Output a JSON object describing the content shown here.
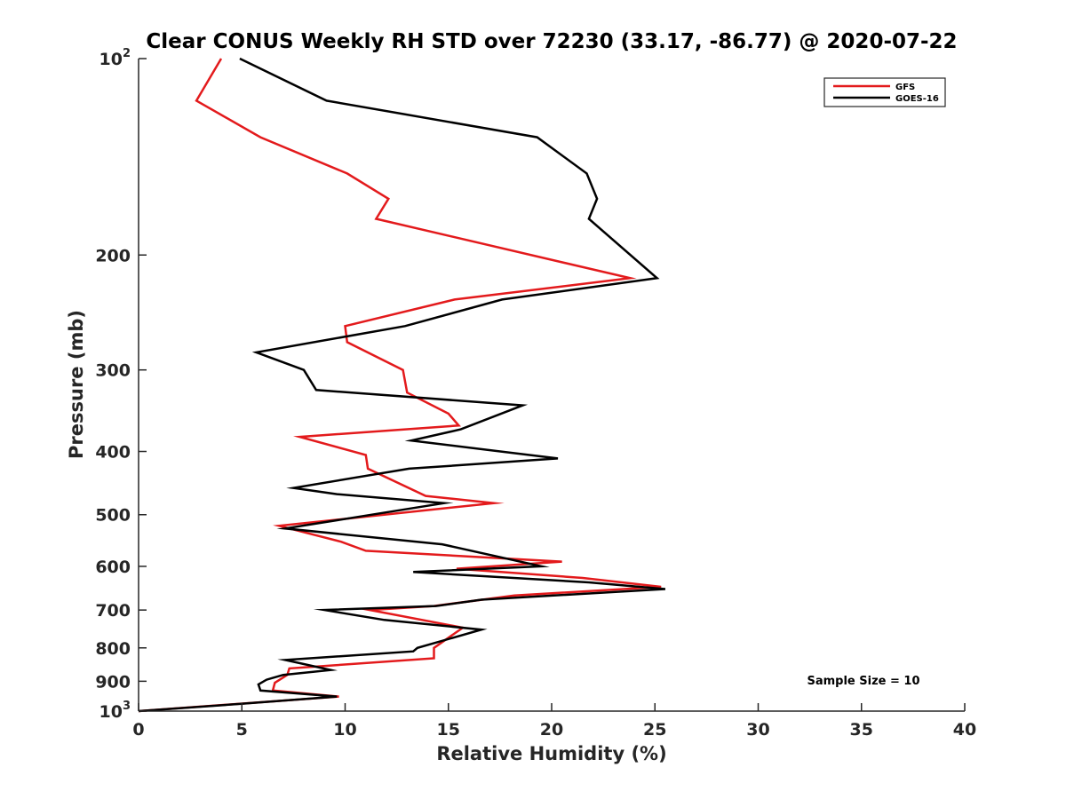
{
  "chart_data": {
    "type": "line",
    "title": "Clear CONUS Weekly RH STD over 72230 (33.17, -86.77) @ 2020-07-22",
    "xlabel": "Relative Humidity (%)",
    "ylabel": "Pressure (mb)",
    "xlim": [
      0,
      40
    ],
    "ylim": [
      100,
      1000
    ],
    "yscale": "log",
    "y_reversed": true,
    "xticks": [
      0,
      5,
      10,
      15,
      20,
      25,
      30,
      35,
      40
    ],
    "xtick_labels": [
      "0",
      "5",
      "10",
      "15",
      "20",
      "25",
      "30",
      "35",
      "40"
    ],
    "yticks": [
      100,
      200,
      300,
      400,
      500,
      600,
      700,
      800,
      900,
      1000
    ],
    "ytick_labels": [
      {
        "base": "10",
        "exp": "2"
      },
      {
        "base": "200",
        "exp": ""
      },
      {
        "base": "300",
        "exp": ""
      },
      {
        "base": "400",
        "exp": ""
      },
      {
        "base": "500",
        "exp": ""
      },
      {
        "base": "600",
        "exp": ""
      },
      {
        "base": "700",
        "exp": ""
      },
      {
        "base": "800",
        "exp": ""
      },
      {
        "base": "900",
        "exp": ""
      },
      {
        "base": "10",
        "exp": "3"
      }
    ],
    "legend_position": "top-right",
    "annotation": "Sample Size = 10",
    "series": [
      {
        "name": "GFS",
        "color": "#e31a1c",
        "x": [
          4.0,
          2.8,
          5.9,
          10.1,
          12.1,
          11.5,
          23.8,
          15.3,
          10.0,
          10.1,
          12.8,
          13.0,
          15.0,
          15.5,
          7.8,
          11.0,
          11.1,
          13.9,
          17.2,
          6.8,
          9.8,
          11.0,
          20.5,
          15.4,
          21.5,
          25.3,
          18.2,
          14.3,
          11.2,
          15.7,
          14.3,
          14.3,
          7.3,
          7.2,
          6.6,
          6.5,
          9.7,
          0.0
        ],
        "y": [
          100,
          116,
          132,
          150,
          164,
          176,
          217,
          234,
          257,
          272,
          300,
          325,
          350,
          365,
          380,
          405,
          425,
          468,
          480,
          520,
          550,
          568,
          590,
          605,
          625,
          645,
          665,
          690,
          700,
          745,
          800,
          830,
          860,
          880,
          905,
          930,
          950,
          1000
        ]
      },
      {
        "name": "GOES-16",
        "color": "#000000",
        "x": [
          4.9,
          9.1,
          19.3,
          21.7,
          22.2,
          21.8,
          25.1,
          17.6,
          12.9,
          5.7,
          8.0,
          8.6,
          18.6,
          15.6,
          13.2,
          20.3,
          13.1,
          7.5,
          9.6,
          14.8,
          11.3,
          7.1,
          14.7,
          19.5,
          13.3,
          21.8,
          25.5,
          16.6,
          14.4,
          9.0,
          11.9,
          16.6,
          13.5,
          13.3,
          7.1,
          9.3,
          7.0,
          6.2,
          5.8,
          5.9,
          9.6,
          4.9,
          0.0
        ],
        "y": [
          100,
          116,
          132,
          150,
          164,
          176,
          217,
          234,
          257,
          282,
          300,
          322,
          340,
          370,
          385,
          410,
          425,
          455,
          465,
          480,
          500,
          525,
          555,
          600,
          612,
          635,
          650,
          675,
          690,
          700,
          725,
          750,
          800,
          810,
          835,
          865,
          880,
          895,
          910,
          930,
          950,
          975,
          1000
        ]
      }
    ]
  }
}
